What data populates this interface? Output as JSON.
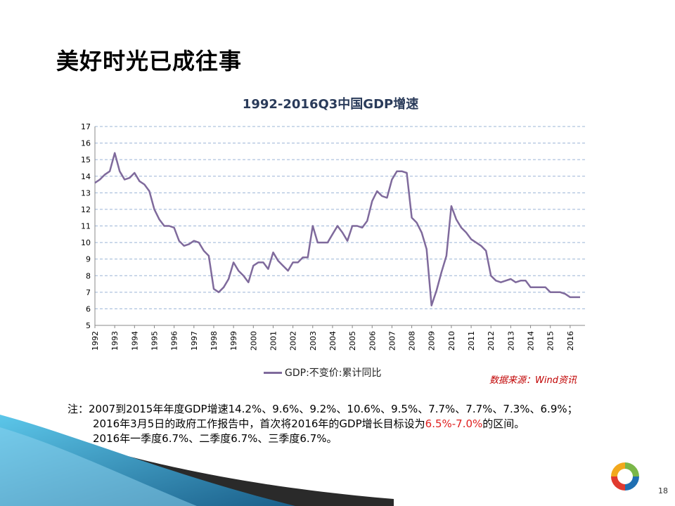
{
  "slide": {
    "title": "美好时光已成往事",
    "page_number": "18"
  },
  "chart": {
    "legend_label": "GDP:不变价:累计同比",
    "source": "数据来源：Wind资讯",
    "line_color": "#7f6a9c"
  },
  "notes": {
    "line1": "注：2007到2015年年度GDP增速14.2%、9.6%、9.2%、10.6%、9.5%、7.7%、7.7%、7.3%、6.9%；",
    "line2_a": "2016年3月5日的政府工作报告中，首次将2016年的GDP增长目标设为",
    "line2_red": "6.5%-7.0%",
    "line2_b": "的区间。",
    "line3": "2016年一季度6.7%、二季度6.7%、三季度6.7%。"
  },
  "chart_data": {
    "type": "line",
    "title": "1992-2016Q3中国GDP增速",
    "xlabel": "",
    "ylabel": "",
    "ylim": [
      5,
      17
    ],
    "yticks": [
      5,
      6,
      7,
      8,
      9,
      10,
      11,
      12,
      13,
      14,
      15,
      16,
      17
    ],
    "xlim": [
      1992,
      2016.75
    ],
    "xticks": [
      "1992",
      "1993",
      "1994",
      "1995",
      "1996",
      "1997",
      "1998",
      "1999",
      "2000",
      "2001",
      "2002",
      "2003",
      "2004",
      "2005",
      "2006",
      "2007",
      "2008",
      "2009",
      "2010",
      "2011",
      "2012",
      "2013",
      "2014",
      "2015",
      "2016"
    ],
    "grid": "horizontal dashed",
    "legend_position": "bottom",
    "series": [
      {
        "name": "GDP:不变价:累计同比",
        "points": [
          [
            1992.0,
            13.6
          ],
          [
            1992.25,
            13.8
          ],
          [
            1992.5,
            14.1
          ],
          [
            1992.75,
            14.3
          ],
          [
            1993.0,
            15.4
          ],
          [
            1993.25,
            14.3
          ],
          [
            1993.5,
            13.8
          ],
          [
            1993.75,
            13.9
          ],
          [
            1994.0,
            14.2
          ],
          [
            1994.25,
            13.7
          ],
          [
            1994.5,
            13.5
          ],
          [
            1994.75,
            13.1
          ],
          [
            1995.0,
            12.0
          ],
          [
            1995.25,
            11.4
          ],
          [
            1995.5,
            11.0
          ],
          [
            1995.75,
            11.0
          ],
          [
            1996.0,
            10.9
          ],
          [
            1996.25,
            10.1
          ],
          [
            1996.5,
            9.8
          ],
          [
            1996.75,
            9.9
          ],
          [
            1997.0,
            10.1
          ],
          [
            1997.25,
            10.0
          ],
          [
            1997.5,
            9.5
          ],
          [
            1997.75,
            9.2
          ],
          [
            1998.0,
            7.2
          ],
          [
            1998.25,
            7.0
          ],
          [
            1998.5,
            7.3
          ],
          [
            1998.75,
            7.8
          ],
          [
            1999.0,
            8.8
          ],
          [
            1999.25,
            8.3
          ],
          [
            1999.5,
            8.0
          ],
          [
            1999.75,
            7.6
          ],
          [
            2000.0,
            8.6
          ],
          [
            2000.25,
            8.8
          ],
          [
            2000.5,
            8.8
          ],
          [
            2000.75,
            8.4
          ],
          [
            2001.0,
            9.4
          ],
          [
            2001.25,
            8.9
          ],
          [
            2001.5,
            8.6
          ],
          [
            2001.75,
            8.3
          ],
          [
            2002.0,
            8.8
          ],
          [
            2002.25,
            8.8
          ],
          [
            2002.5,
            9.1
          ],
          [
            2002.75,
            9.1
          ],
          [
            2003.0,
            11.0
          ],
          [
            2003.25,
            10.0
          ],
          [
            2003.5,
            10.0
          ],
          [
            2003.75,
            10.0
          ],
          [
            2004.0,
            10.5
          ],
          [
            2004.25,
            11.0
          ],
          [
            2004.5,
            10.6
          ],
          [
            2004.75,
            10.1
          ],
          [
            2005.0,
            11.0
          ],
          [
            2005.25,
            11.0
          ],
          [
            2005.5,
            10.9
          ],
          [
            2005.75,
            11.3
          ],
          [
            2006.0,
            12.5
          ],
          [
            2006.25,
            13.1
          ],
          [
            2006.5,
            12.8
          ],
          [
            2006.75,
            12.7
          ],
          [
            2007.0,
            13.8
          ],
          [
            2007.25,
            14.3
          ],
          [
            2007.5,
            14.3
          ],
          [
            2007.75,
            14.2
          ],
          [
            2008.0,
            11.5
          ],
          [
            2008.25,
            11.2
          ],
          [
            2008.5,
            10.6
          ],
          [
            2008.75,
            9.6
          ],
          [
            2009.0,
            6.2
          ],
          [
            2009.25,
            7.1
          ],
          [
            2009.5,
            8.2
          ],
          [
            2009.75,
            9.2
          ],
          [
            2010.0,
            12.2
          ],
          [
            2010.25,
            11.4
          ],
          [
            2010.5,
            10.9
          ],
          [
            2010.75,
            10.6
          ],
          [
            2011.0,
            10.2
          ],
          [
            2011.25,
            10.0
          ],
          [
            2011.5,
            9.8
          ],
          [
            2011.75,
            9.5
          ],
          [
            2012.0,
            8.0
          ],
          [
            2012.25,
            7.7
          ],
          [
            2012.5,
            7.6
          ],
          [
            2012.75,
            7.7
          ],
          [
            2013.0,
            7.8
          ],
          [
            2013.25,
            7.6
          ],
          [
            2013.5,
            7.7
          ],
          [
            2013.75,
            7.7
          ],
          [
            2014.0,
            7.3
          ],
          [
            2014.25,
            7.3
          ],
          [
            2014.5,
            7.3
          ],
          [
            2014.75,
            7.3
          ],
          [
            2015.0,
            7.0
          ],
          [
            2015.25,
            7.0
          ],
          [
            2015.5,
            7.0
          ],
          [
            2015.75,
            6.9
          ],
          [
            2016.0,
            6.7
          ],
          [
            2016.25,
            6.7
          ],
          [
            2016.5,
            6.7
          ]
        ]
      }
    ]
  }
}
